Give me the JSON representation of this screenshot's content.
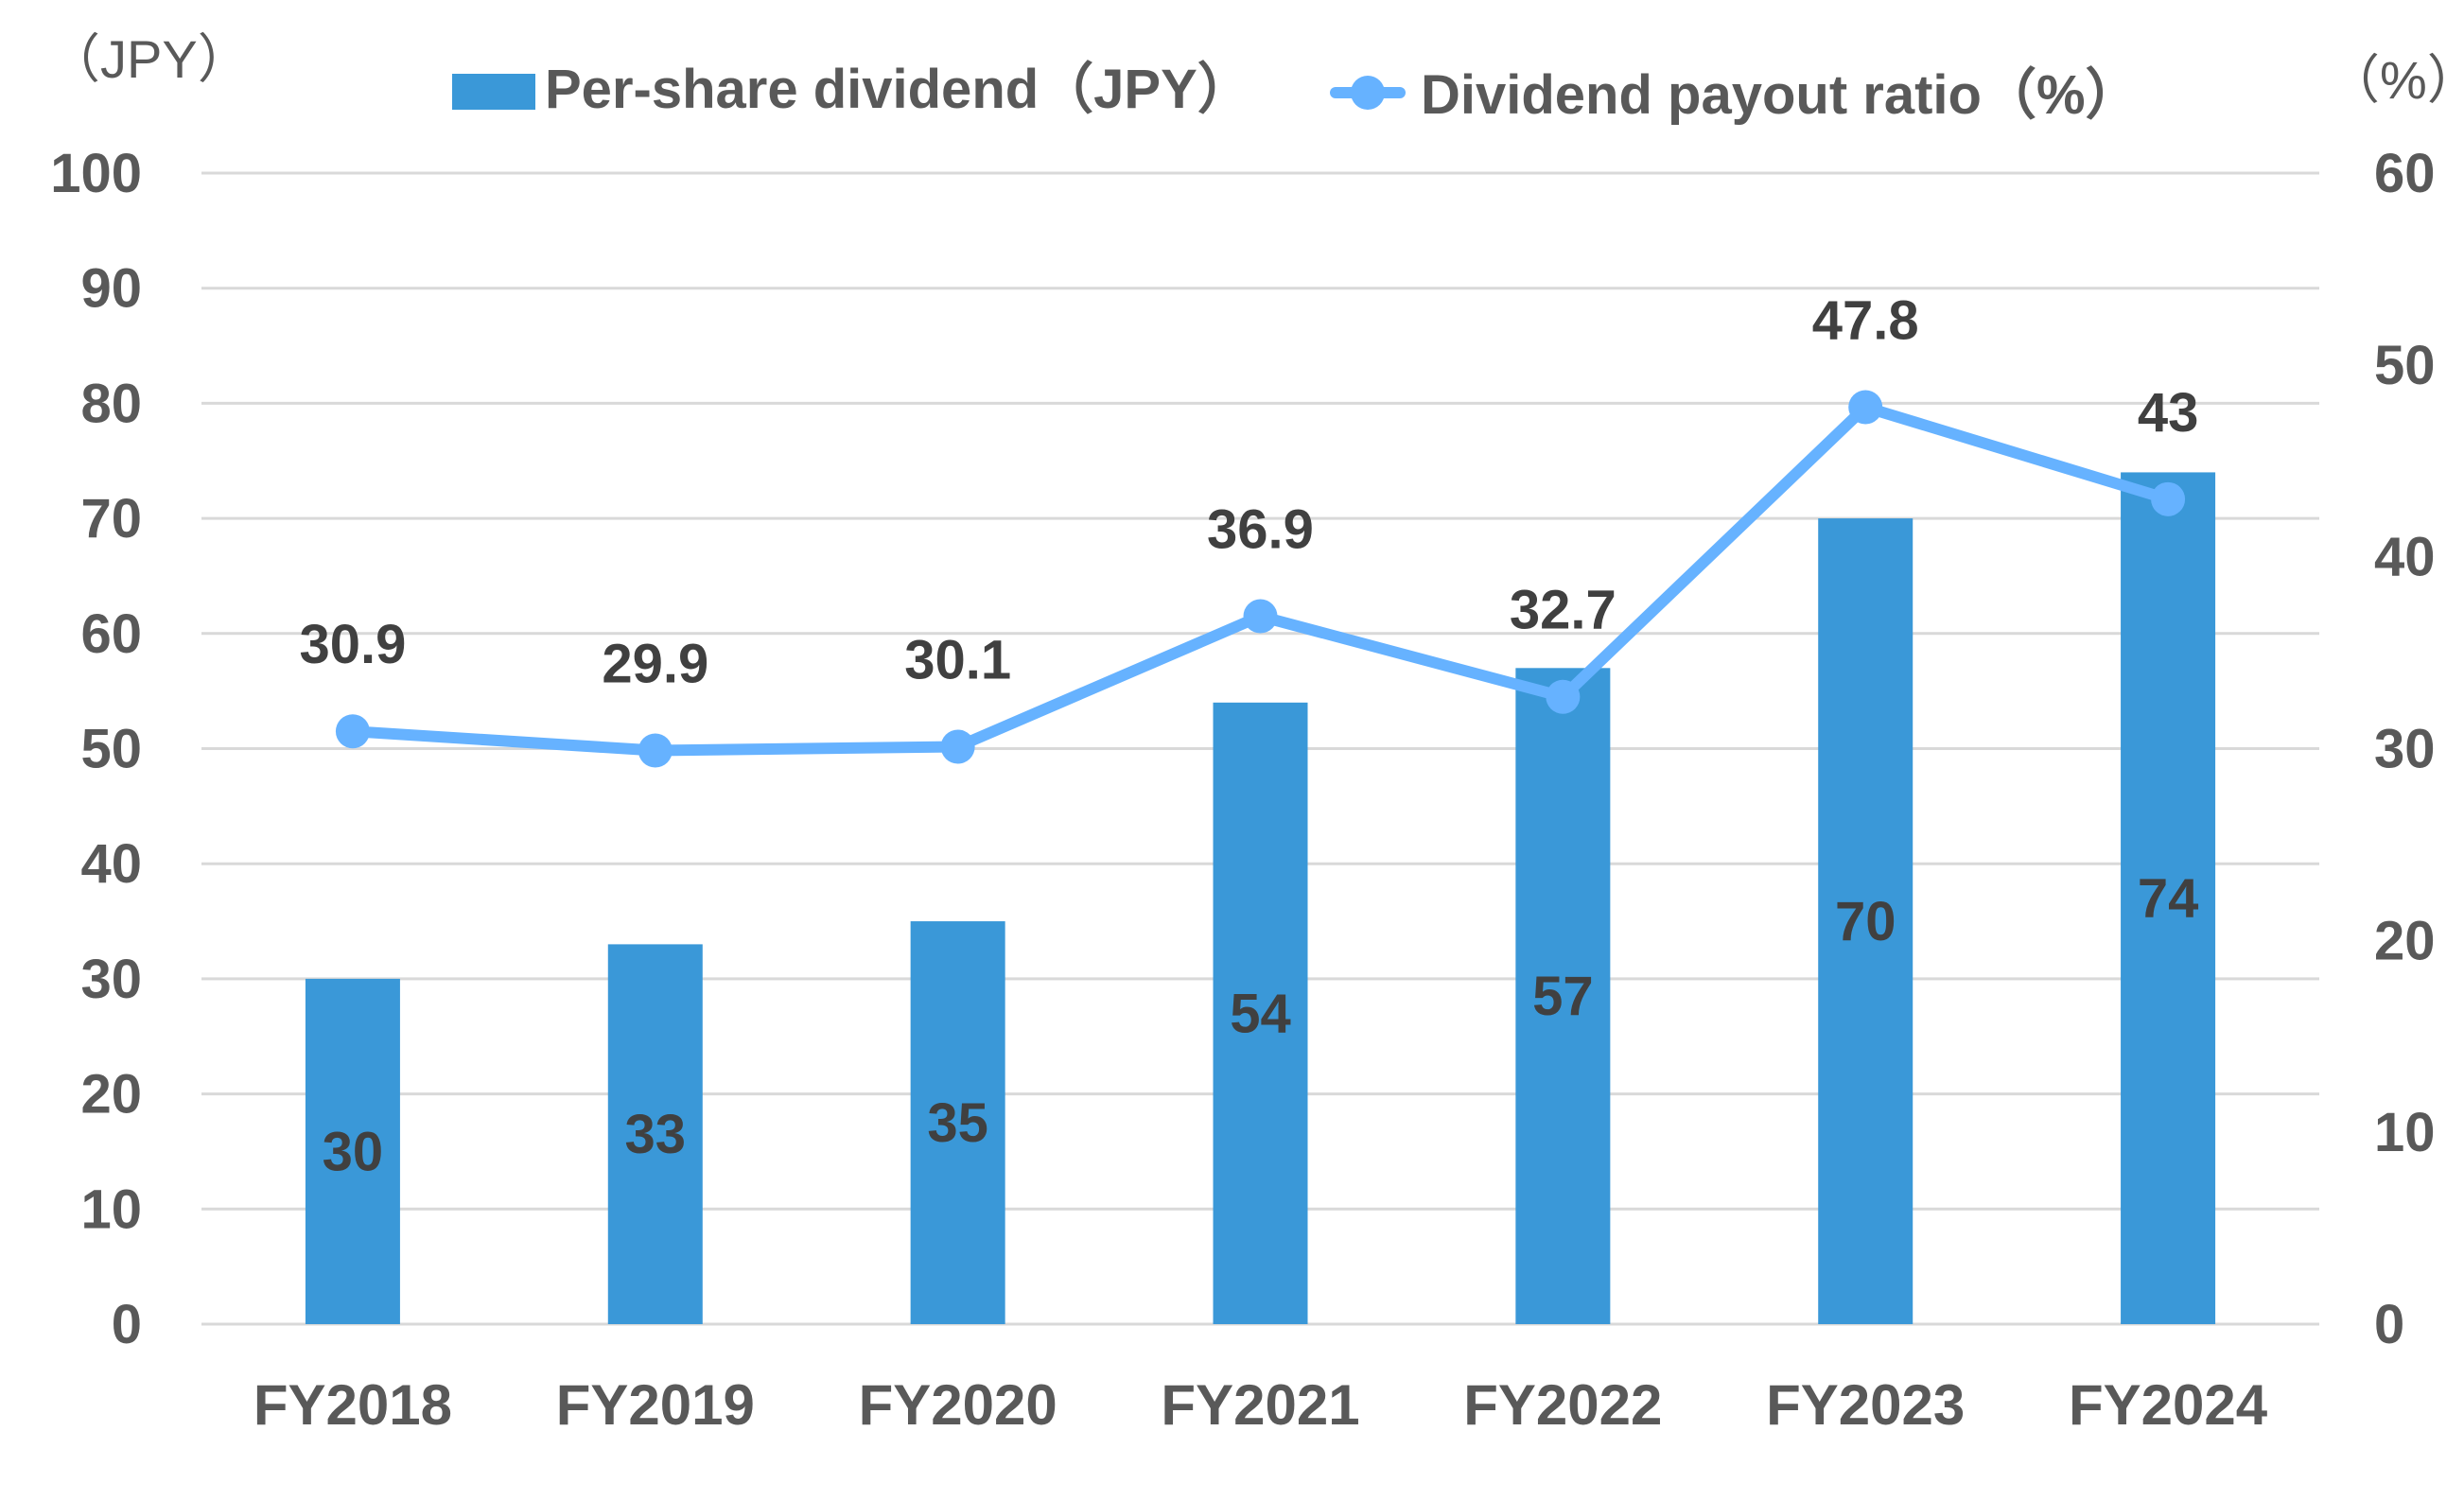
{
  "chart_data": {
    "type": "bar+line",
    "title": "",
    "categories": [
      "FY2018",
      "FY2019",
      "FY2020",
      "FY2021",
      "FY2022",
      "FY2023",
      "FY2024"
    ],
    "series": [
      {
        "name": "Per-share dividend（JPY）",
        "type": "bar",
        "axis": "left",
        "color": "#3A98D8",
        "values": [
          30,
          33,
          35,
          54,
          57,
          70,
          74
        ]
      },
      {
        "name": "Dividend payout ratio（%）",
        "type": "line",
        "axis": "right",
        "color": "#66B2FF",
        "values": [
          30.9,
          29.9,
          30.1,
          36.9,
          32.7,
          47.8,
          43
        ]
      }
    ],
    "y_left": {
      "label": "（JPY）",
      "ylim": [
        0,
        100
      ],
      "ticks": [
        0,
        10,
        20,
        30,
        40,
        50,
        60,
        70,
        80,
        90,
        100
      ]
    },
    "y_right": {
      "label": "（%）",
      "ylim": [
        0,
        60
      ],
      "ticks": [
        0,
        10,
        20,
        30,
        40,
        50,
        60
      ]
    },
    "xlabel": "",
    "grid": true,
    "legend_position": "top"
  },
  "legend": {
    "bar_label": "Per-share dividend（JPY）",
    "line_label": "Dividend payout ratio（%）"
  },
  "axes": {
    "left_unit": "（JPY）",
    "right_unit": "（%）"
  },
  "colors": {
    "bar": "#3A98D8",
    "line": "#66B2FF",
    "grid": "#D9D9D9",
    "axis_text": "#595959",
    "label_text": "#404040"
  }
}
